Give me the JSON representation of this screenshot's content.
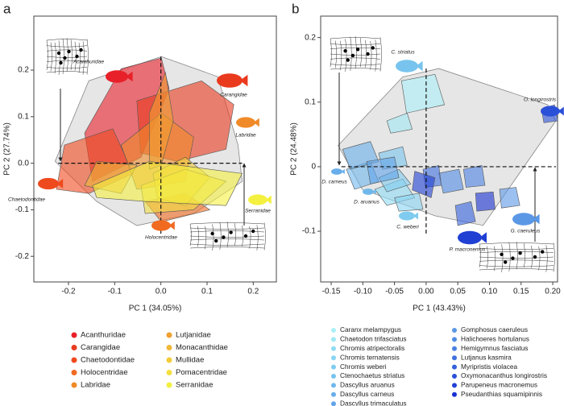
{
  "chart_data": [
    {
      "type": "scatter",
      "panel": "a",
      "xlabel": "PC 1 (34.05%)",
      "ylabel": "PC 2 (27.74%)",
      "xlim": [
        -0.275,
        0.25
      ],
      "ylim": [
        -0.255,
        0.316
      ],
      "xticks": [
        -0.2,
        -0.1,
        {
          "value": 0,
          "label": "0.0"
        },
        0.1,
        0.2
      ],
      "yticks": [
        -0.2,
        -0.1,
        {
          "value": 0,
          "label": "0.0"
        },
        0.1,
        0.2
      ],
      "morphospace": {
        "x": [
          -0.229,
          -0.156,
          0.001,
          0.123,
          0.167,
          0.176,
          0.071,
          -0.052,
          -0.139
        ],
        "y": [
          0.004,
          0.177,
          0.229,
          0.186,
          0.039,
          -0.039,
          -0.108,
          -0.134,
          -0.082
        ]
      },
      "annotations": [
        "Acanthuridae",
        "Carangidae",
        "Labridae",
        "Chaetodontidae",
        "Serranidae",
        "Holocentridae"
      ],
      "series": [
        {
          "name": "Acanthuridae",
          "color": "#e8202a",
          "x": [
            -0.165,
            -0.086,
            0.001,
            0.018,
            -0.043,
            -0.148
          ],
          "y": [
            0.065,
            0.203,
            0.226,
            0.16,
            0.013,
            -0.039
          ]
        },
        {
          "name": "Carangidae",
          "color": "#ea3a1e",
          "x": [
            -0.052,
            0.088,
            0.158,
            0.141,
            0.036,
            -0.044
          ],
          "y": [
            0.134,
            0.177,
            0.126,
            0.03,
            0.004,
            0.022
          ]
        },
        {
          "name": "Chaetodontidae",
          "color": "#ef4a1e",
          "x": [
            -0.226,
            -0.209,
            -0.104,
            -0.06,
            -0.156
          ],
          "y": [
            -0.056,
            0.039,
            0.074,
            -0.022,
            -0.065
          ]
        },
        {
          "name": "Holocentridae",
          "color": "#f06a20",
          "x": [
            -0.034,
            0.053,
            0.106,
            0.001
          ],
          "y": [
            -0.082,
            -0.065,
            -0.1,
            -0.126
          ]
        },
        {
          "name": "Labridae",
          "color": "#f08a28",
          "x": [
            -0.086,
            0.001,
            0.071,
            0.053,
            -0.052
          ],
          "y": [
            0.039,
            0.108,
            0.056,
            -0.039,
            -0.056
          ]
        },
        {
          "name": "Lutjanidae",
          "color": "#f0a030",
          "x": [
            -0.025,
            0.01,
            0.027,
            0.001,
            -0.025
          ],
          "y": [
            0.108,
            0.195,
            0.091,
            -0.004,
            -0.013
          ]
        },
        {
          "name": "Monacanthidae",
          "color": "#f0b838",
          "x": [
            -0.165,
            -0.139,
            -0.052,
            -0.086
          ],
          "y": [
            -0.048,
            0.004,
            -0.004,
            -0.065
          ]
        },
        {
          "name": "Mullidae",
          "color": "#f2cc38",
          "x": [
            -0.017,
            0.053,
            0.106,
            0.053,
            -0.008
          ],
          "y": [
            -0.022,
            0.013,
            -0.03,
            -0.091,
            -0.074
          ]
        },
        {
          "name": "Pomacentridae",
          "color": "#f4e040",
          "x": [
            -0.043,
            0.053,
            0.141,
            0.071,
            -0.034
          ],
          "y": [
            -0.048,
            -0.013,
            -0.039,
            -0.1,
            -0.108
          ]
        },
        {
          "name": "Serranidae",
          "color": "#f4f040",
          "x": [
            -0.148,
            -0.025,
            0.176,
            0.141,
            -0.034,
            -0.139
          ],
          "y": [
            -0.048,
            0.004,
            -0.022,
            -0.091,
            -0.082,
            -0.074
          ]
        }
      ]
    },
    {
      "type": "scatter",
      "panel": "b",
      "xlabel": "PC 1 (43.43%)",
      "ylabel": "PC 2 (24.48%)",
      "xlim": [
        -0.1666,
        0.2076
      ],
      "ylim": [
        -0.1785,
        0.2332
      ],
      "xticks": [
        -0.15,
        {
          "value": -0.1,
          "label": "-0.10"
        },
        -0.05,
        {
          "value": 0,
          "label": "0.00"
        },
        0.05,
        {
          "value": 0.1,
          "label": "0.10"
        },
        0.15,
        {
          "value": 0.2,
          "label": "0.20"
        }
      ],
      "yticks": [
        -0.1,
        0,
        0.1,
        0.2
      ],
      "morphospace": {
        "x": [
          -0.139,
          -0.037,
          0.02,
          0.192,
          0.205,
          0.09,
          0.014,
          -0.101
        ],
        "y": [
          0.033,
          0.139,
          0.152,
          0.096,
          0.071,
          -0.091,
          -0.076,
          -0.035
        ]
      },
      "annotations": [
        "C. striatus",
        "O. longirostris",
        "D. carneus",
        "D. aruanus",
        "C. weberi",
        "P. macronemus",
        "G. caeruleus"
      ],
      "series": [
        {
          "name": "Caranx melampygus",
          "color": "#aaf0f8",
          "x": [
            -0.039,
            0.014,
            0.029,
            -0.031
          ],
          "y": [
            0.133,
            0.143,
            0.096,
            0.083
          ]
        },
        {
          "name": "Chaetodon trifasciatus",
          "color": "#a0e8f4",
          "x": [
            -0.062,
            -0.03,
            -0.022,
            -0.056
          ],
          "y": [
            0.071,
            0.083,
            0.058,
            0.052
          ]
        },
        {
          "name": "Chromis atripectoralis",
          "color": "#90dcf4",
          "x": [
            -0.081,
            -0.037,
            -0.018,
            -0.062
          ],
          "y": [
            -0.035,
            -0.019,
            -0.048,
            -0.06
          ]
        },
        {
          "name": "Chromis ternatensis",
          "color": "#88d4f2",
          "x": [
            -0.05,
            -0.011,
            -0.005,
            -0.043
          ],
          "y": [
            -0.048,
            -0.041,
            -0.066,
            -0.069
          ]
        },
        {
          "name": "Chromis weberi",
          "color": "#80ccf0",
          "x": [
            -0.075,
            -0.043,
            -0.024,
            -0.062
          ],
          "y": [
            -0.017,
            -0.004,
            -0.027,
            -0.039
          ]
        },
        {
          "name": "Ctenochaetus striatus",
          "color": "#78c4ee",
          "x": [
            -0.075,
            -0.037,
            -0.03,
            -0.069
          ],
          "y": [
            0.021,
            0.031,
            0.002,
            -0.004
          ]
        },
        {
          "name": "Dascyllus aruanus",
          "color": "#70b8ec",
          "x": [
            -0.126,
            -0.088,
            -0.075,
            -0.113
          ],
          "y": [
            -0.004,
            0.008,
            -0.023,
            -0.035
          ]
        },
        {
          "name": "Dascyllus carneus",
          "color": "#68aeea",
          "x": [
            -0.132,
            -0.088,
            -0.075,
            -0.12
          ],
          "y": [
            0.027,
            0.039,
            0.008,
            -0.004
          ]
        },
        {
          "name": "Dascyllus trimaculatus",
          "color": "#62a4e8",
          "x": [
            -0.094,
            -0.05,
            -0.043,
            -0.088
          ],
          "y": [
            0.008,
            0.015,
            -0.017,
            -0.027
          ]
        },
        {
          "name": "Gomphosus caeruleus",
          "color": "#5a98e6",
          "x": [
            0.116,
            0.142,
            0.148,
            0.119
          ],
          "y": [
            -0.035,
            -0.032,
            -0.06,
            -0.064
          ]
        },
        {
          "name": "Halichoeres hortulanus",
          "color": "#508ce4",
          "x": [
            0.02,
            0.052,
            0.059,
            0.027
          ],
          "y": [
            -0.01,
            -0.004,
            -0.035,
            -0.041
          ]
        },
        {
          "name": "Hemigymnus fasciatus",
          "color": "#4a80e2",
          "x": [
            0.059,
            0.088,
            0.093,
            0.063
          ],
          "y": [
            -0.004,
            0.002,
            -0.029,
            -0.032
          ]
        },
        {
          "name": "Lutjanus kasmira",
          "color": "#4070e0",
          "x": [
            -0.005,
            0.02,
            0.024,
            -0.001
          ],
          "y": [
            -0.004,
            0.002,
            -0.029,
            -0.032
          ]
        },
        {
          "name": "Myripristis violacea",
          "color": "#3460dc",
          "x": [
            0.046,
            0.071,
            0.078,
            0.05
          ],
          "y": [
            -0.06,
            -0.054,
            -0.085,
            -0.091
          ]
        },
        {
          "name": "Oxymonacanthus longirostris",
          "color": "#2a50d8",
          "x": [
            0.182,
            0.203,
            0.208,
            0.186
          ],
          "y": [
            0.089,
            0.096,
            0.071,
            0.068
          ]
        },
        {
          "name": "Parupeneus macronemus",
          "color": "#2040d4",
          "x": [
            -0.018,
            0.014,
            0.008,
            -0.022
          ],
          "y": [
            -0.007,
            -0.017,
            -0.048,
            -0.036
          ]
        },
        {
          "name": "Pseudanthias squamipinnis",
          "color": "#1830d0",
          "x": [
            0.078,
            0.106,
            0.109,
            0.08
          ],
          "y": [
            -0.041,
            -0.039,
            -0.066,
            -0.069
          ]
        }
      ]
    }
  ]
}
